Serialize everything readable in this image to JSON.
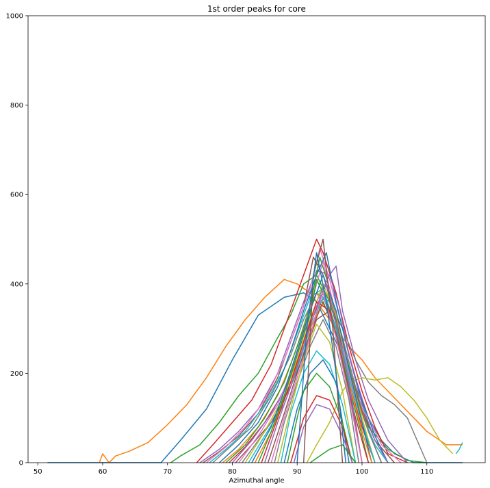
{
  "chart_data": {
    "type": "line",
    "title": "1st order peaks for core",
    "xlabel": "Azimuthal angle",
    "ylabel": "",
    "xlim": [
      48.5,
      119
    ],
    "ylim": [
      0,
      1000
    ],
    "xticks": [
      50,
      60,
      70,
      80,
      90,
      100,
      110
    ],
    "yticks": [
      0,
      200,
      400,
      600,
      800,
      1000
    ],
    "grid": false,
    "legend": "none",
    "series_count_note_visible": false,
    "palette": [
      "#1f77b4",
      "#ff7f0e",
      "#2ca02c",
      "#d62728",
      "#9467bd",
      "#8c564b",
      "#e377c2",
      "#7f7f7f",
      "#bcbd22",
      "#17becf"
    ],
    "series": [
      {
        "color": "#1f77b4",
        "x": [
          51.5,
          69,
          72,
          76,
          80,
          84,
          88,
          91,
          93,
          95,
          97,
          99,
          101,
          103,
          105,
          108,
          110,
          115.5
        ],
        "y": [
          0,
          0,
          50,
          120,
          230,
          330,
          370,
          380,
          360,
          300,
          240,
          170,
          100,
          50,
          20,
          0,
          0,
          0
        ]
      },
      {
        "color": "#ff7f0e",
        "x": [
          59.5,
          60,
          61,
          62,
          64,
          67,
          70,
          73,
          76,
          79,
          82,
          85,
          88,
          90,
          92,
          94,
          96,
          98,
          100,
          102,
          104,
          106,
          108,
          110,
          113,
          115.5
        ],
        "y": [
          0,
          20,
          0,
          15,
          25,
          45,
          85,
          130,
          190,
          260,
          320,
          370,
          410,
          400,
          380,
          340,
          300,
          260,
          230,
          190,
          160,
          130,
          100,
          70,
          40,
          40
        ]
      },
      {
        "color": "#2ca02c",
        "x": [
          70.5,
          72,
          75,
          78,
          81,
          84,
          87,
          89,
          91,
          93,
          95,
          97,
          99,
          101,
          104,
          107,
          110
        ],
        "y": [
          0,
          15,
          40,
          90,
          150,
          200,
          280,
          330,
          400,
          420,
          360,
          260,
          160,
          80,
          30,
          5,
          0
        ]
      },
      {
        "color": "#d62728",
        "x": [
          74.5,
          77,
          80,
          83,
          86,
          88,
          90,
          92,
          93,
          94,
          96,
          98,
          100,
          102,
          104,
          107
        ],
        "y": [
          0,
          40,
          90,
          140,
          220,
          300,
          380,
          460,
          500,
          470,
          380,
          260,
          160,
          80,
          20,
          0
        ]
      },
      {
        "color": "#9467bd",
        "x": [
          75,
          78,
          81,
          84,
          87,
          89,
          91,
          93,
          95,
          96,
          97,
          99,
          101,
          104,
          107
        ],
        "y": [
          0,
          30,
          70,
          120,
          200,
          280,
          360,
          430,
          420,
          440,
          340,
          230,
          140,
          50,
          0
        ]
      },
      {
        "color": "#8c564b",
        "x": [
          75.5,
          78,
          81,
          84,
          87,
          89,
          91,
          92.5,
          94,
          96,
          98,
          100,
          102,
          105
        ],
        "y": [
          0,
          25,
          60,
          110,
          190,
          270,
          350,
          460,
          420,
          320,
          210,
          120,
          50,
          0
        ]
      },
      {
        "color": "#e377c2",
        "x": [
          76,
          79,
          82,
          85,
          88,
          90,
          92,
          93.5,
          95,
          97,
          99,
          101,
          103,
          106
        ],
        "y": [
          0,
          35,
          80,
          140,
          230,
          310,
          390,
          480,
          410,
          300,
          190,
          100,
          40,
          0
        ]
      },
      {
        "color": "#7f7f7f",
        "x": [
          77,
          80,
          83,
          86,
          89,
          91,
          93,
          95,
          97,
          99,
          101,
          103,
          105,
          107,
          110
        ],
        "y": [
          0,
          40,
          80,
          150,
          240,
          320,
          380,
          360,
          300,
          230,
          180,
          150,
          130,
          100,
          0
        ]
      },
      {
        "color": "#bcbd22",
        "x": [
          91.5,
          93,
          95,
          97,
          98,
          100,
          102,
          104,
          106,
          108,
          110,
          112,
          114
        ],
        "y": [
          0,
          40,
          90,
          160,
          180,
          190,
          185,
          190,
          170,
          140,
          100,
          50,
          20
        ]
      },
      {
        "color": "#17becf",
        "x": [
          76.5,
          79,
          82,
          85,
          88,
          90,
          92,
          94,
          96,
          98,
          100,
          102,
          104
        ],
        "y": [
          0,
          30,
          70,
          130,
          210,
          290,
          370,
          390,
          300,
          200,
          110,
          40,
          0
        ]
      },
      {
        "color": "#1f77b4",
        "x": [
          78,
          81,
          84,
          87,
          89,
          91,
          93,
          94.5,
          96,
          98,
          100,
          102,
          104
        ],
        "y": [
          0,
          40,
          90,
          170,
          250,
          340,
          420,
          470,
          360,
          240,
          140,
          60,
          0
        ]
      },
      {
        "color": "#ff7f0e",
        "x": [
          78.5,
          81,
          84,
          87,
          89,
          91,
          93,
          95,
          97,
          99,
          101,
          103
        ],
        "y": [
          0,
          30,
          80,
          150,
          220,
          300,
          380,
          330,
          240,
          150,
          70,
          0
        ]
      },
      {
        "color": "#2ca02c",
        "x": [
          79,
          82,
          85,
          88,
          90,
          92,
          93.5,
          95,
          97,
          99,
          101,
          103
        ],
        "y": [
          0,
          40,
          100,
          180,
          260,
          350,
          460,
          390,
          270,
          160,
          70,
          0
        ]
      },
      {
        "color": "#d62728",
        "x": [
          79.5,
          82,
          85,
          88,
          90,
          92,
          94,
          96,
          98,
          100,
          102
        ],
        "y": [
          0,
          35,
          90,
          160,
          230,
          310,
          380,
          300,
          180,
          80,
          0
        ]
      },
      {
        "color": "#9467bd",
        "x": [
          80,
          83,
          86,
          89,
          91,
          93,
          95,
          96.5,
          98,
          100,
          102,
          104
        ],
        "y": [
          0,
          50,
          110,
          190,
          270,
          360,
          420,
          350,
          240,
          130,
          50,
          0
        ]
      },
      {
        "color": "#8c564b",
        "x": [
          80.5,
          83,
          86,
          89,
          91,
          93,
          95,
          97,
          99,
          101,
          103
        ],
        "y": [
          0,
          40,
          90,
          170,
          240,
          320,
          340,
          260,
          160,
          70,
          0
        ]
      },
      {
        "color": "#e377c2",
        "x": [
          81,
          84,
          87,
          89,
          91,
          93,
          94,
          96,
          98,
          100,
          102
        ],
        "y": [
          0,
          60,
          130,
          200,
          290,
          400,
          450,
          330,
          200,
          90,
          0
        ]
      },
      {
        "color": "#7f7f7f",
        "x": [
          81.5,
          84,
          87,
          89,
          91,
          93,
          95,
          97,
          99,
          101,
          103
        ],
        "y": [
          0,
          50,
          110,
          180,
          260,
          350,
          380,
          280,
          170,
          70,
          0
        ]
      },
      {
        "color": "#bcbd22",
        "x": [
          82,
          85,
          88,
          90,
          92,
          94,
          96,
          98,
          100,
          102
        ],
        "y": [
          0,
          70,
          150,
          230,
          320,
          400,
          330,
          210,
          100,
          0
        ]
      },
      {
        "color": "#17becf",
        "x": [
          82.5,
          85,
          88,
          90,
          92,
          94,
          96,
          98,
          100,
          102
        ],
        "y": [
          0,
          60,
          130,
          210,
          300,
          370,
          300,
          190,
          90,
          0
        ]
      },
      {
        "color": "#1f77b4",
        "x": [
          83,
          86,
          88,
          90,
          92,
          94,
          96,
          98,
          100,
          101.5
        ],
        "y": [
          0,
          80,
          160,
          250,
          340,
          420,
          340,
          210,
          90,
          0
        ]
      },
      {
        "color": "#ff7f0e",
        "x": [
          83.5,
          86,
          88,
          90,
          92,
          94,
          96,
          98,
          100,
          101.5
        ],
        "y": [
          0,
          70,
          140,
          220,
          300,
          360,
          290,
          180,
          70,
          0
        ]
      },
      {
        "color": "#2ca02c",
        "x": [
          84,
          86,
          88,
          90,
          92,
          93,
          94,
          96,
          98,
          100,
          101
        ],
        "y": [
          0,
          70,
          150,
          240,
          330,
          410,
          380,
          290,
          170,
          60,
          0
        ]
      },
      {
        "color": "#d62728",
        "x": [
          84.5,
          87,
          89,
          91,
          93,
          95,
          97,
          99,
          101
        ],
        "y": [
          0,
          100,
          180,
          270,
          360,
          340,
          220,
          100,
          0
        ]
      },
      {
        "color": "#9467bd",
        "x": [
          85,
          87,
          89,
          91,
          93,
          94.5,
          96,
          98,
          100
        ],
        "y": [
          0,
          90,
          170,
          260,
          350,
          400,
          310,
          180,
          0
        ]
      },
      {
        "color": "#8c564b",
        "x": [
          85.5,
          88,
          90,
          92,
          94,
          96,
          98,
          100
        ],
        "y": [
          0,
          110,
          200,
          290,
          360,
          290,
          160,
          0
        ]
      },
      {
        "color": "#e377c2",
        "x": [
          86,
          88,
          90,
          92,
          93,
          94,
          96,
          98,
          100
        ],
        "y": [
          0,
          100,
          190,
          280,
          340,
          380,
          280,
          150,
          0
        ]
      },
      {
        "color": "#7f7f7f",
        "x": [
          86.5,
          88,
          90,
          92,
          94,
          96,
          98,
          99.5
        ],
        "y": [
          0,
          90,
          180,
          260,
          320,
          260,
          140,
          0
        ]
      },
      {
        "color": "#bcbd22",
        "x": [
          87,
          89,
          91,
          93,
          95,
          97,
          99
        ],
        "y": [
          0,
          120,
          230,
          310,
          270,
          160,
          0
        ]
      },
      {
        "color": "#17becf",
        "x": [
          87.5,
          89,
          91,
          93,
          95,
          97,
          99
        ],
        "y": [
          0,
          110,
          200,
          250,
          220,
          130,
          0
        ]
      },
      {
        "color": "#1f77b4",
        "x": [
          88,
          90,
          92,
          94,
          96,
          98
        ],
        "y": [
          0,
          120,
          200,
          230,
          180,
          0
        ]
      },
      {
        "color": "#2ca02c",
        "x": [
          88.5,
          90,
          91,
          93,
          95,
          97,
          98.5
        ],
        "y": [
          0,
          100,
          160,
          200,
          170,
          90,
          0
        ]
      },
      {
        "color": "#d62728",
        "x": [
          89,
          91,
          93,
          95,
          97,
          98.5
        ],
        "y": [
          0,
          100,
          150,
          140,
          80,
          0
        ]
      },
      {
        "color": "#9467bd",
        "x": [
          89.5,
          91,
          93,
          95,
          97,
          98.5
        ],
        "y": [
          0,
          80,
          130,
          120,
          60,
          0
        ]
      },
      {
        "color": "#2ca02c",
        "x": [
          92,
          94,
          95,
          97,
          99
        ],
        "y": [
          0,
          20,
          30,
          40,
          0
        ]
      },
      {
        "color": "#8c564b",
        "x": [
          91,
          92.5,
          94,
          95.5,
          97
        ],
        "y": [
          0,
          420,
          500,
          300,
          0
        ]
      },
      {
        "color": "#1f77b4",
        "x": [
          90,
          91.5,
          93,
          94.5,
          96,
          97.5
        ],
        "y": [
          0,
          300,
          470,
          360,
          200,
          0
        ]
      },
      {
        "color": "#17becf",
        "x": [
          114.5,
          115,
          115.5
        ],
        "y": [
          20,
          30,
          45
        ]
      }
    ]
  }
}
